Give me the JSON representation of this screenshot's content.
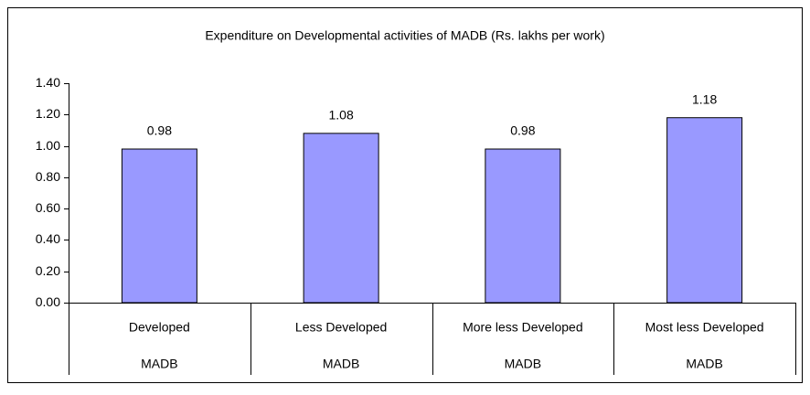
{
  "chart_data": {
    "type": "bar",
    "title": "Expenditure on Developmental activities of MADB (Rs. lakhs per work)",
    "categories": [
      "Developed",
      "Less Developed",
      "More less Developed",
      "Most less Developed"
    ],
    "subcategories": [
      "MADB",
      "MADB",
      "MADB",
      "MADB"
    ],
    "values": [
      0.98,
      1.08,
      0.98,
      1.18
    ],
    "color": "#9999ff",
    "ylim": [
      0,
      1.4
    ],
    "yticks": [
      {
        "value": 0,
        "label": "0.00"
      },
      {
        "value": 0.2,
        "label": "0.20"
      },
      {
        "value": 0.4,
        "label": "0.40"
      },
      {
        "value": 0.6,
        "label": "0.60"
      },
      {
        "value": 0.8,
        "label": "0.80"
      },
      {
        "value": 1.0,
        "label": "1.00"
      },
      {
        "value": 1.2,
        "label": "1.20"
      },
      {
        "value": 1.4,
        "label": "1.40"
      }
    ],
    "grid": false
  }
}
